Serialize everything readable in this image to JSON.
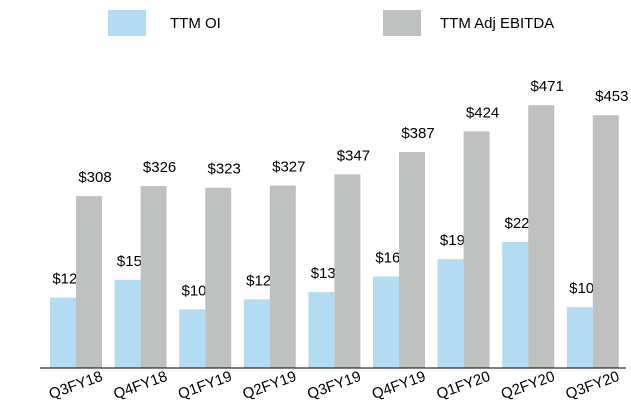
{
  "chart_data": {
    "type": "bar",
    "categories": [
      "Q3FY18",
      "Q4FY18",
      "Q1FY19",
      "Q2FY19",
      "Q3FY19",
      "Q4FY19",
      "Q1FY20",
      "Q2FY20",
      "Q3FY20"
    ],
    "series": [
      {
        "name": "TTM OI",
        "color": "#b3dcf2",
        "values": [
          126,
          158,
          105,
          123,
          136,
          164,
          195,
          226,
          109
        ],
        "value_labels": [
          "$126",
          "$158",
          "$105",
          "$123",
          "$136",
          "$164",
          "$195",
          "$226",
          "$109"
        ]
      },
      {
        "name": "TTM Adj EBITDA",
        "color": "#bfc1c0",
        "values": [
          308,
          326,
          323,
          327,
          347,
          387,
          424,
          471,
          453
        ],
        "value_labels": [
          "$308",
          "$326",
          "$323",
          "$327",
          "$347",
          "$387",
          "$424",
          "$471",
          "$453"
        ]
      }
    ],
    "legend": "top"
  }
}
